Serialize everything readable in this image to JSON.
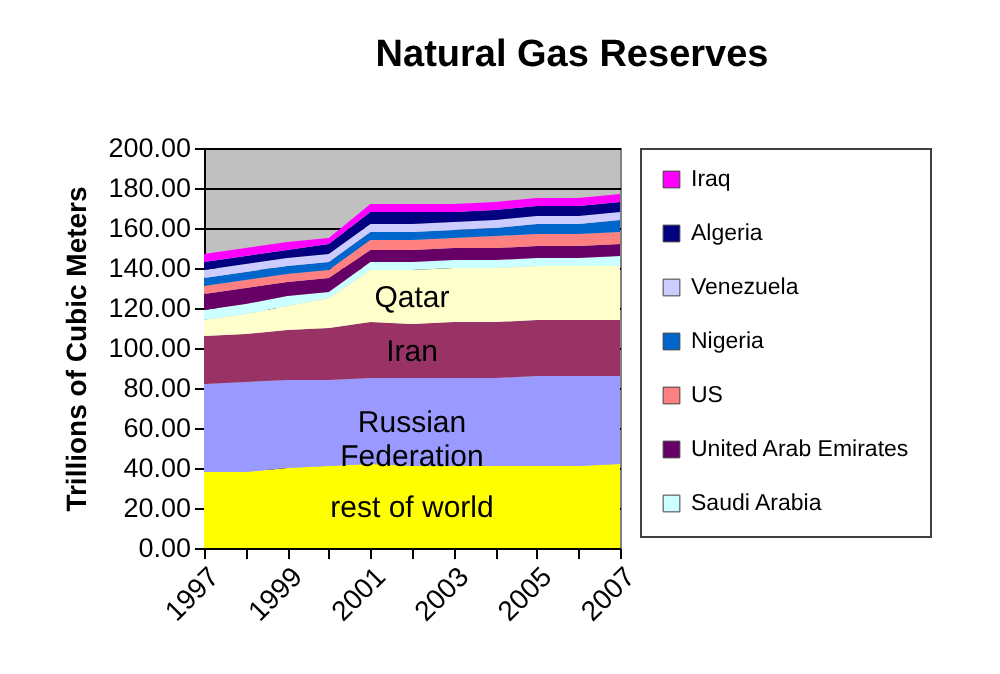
{
  "chart_data": {
    "type": "area",
    "stacked": true,
    "title": "Natural Gas Reserves",
    "ylabel": "Trillions of Cubic Meters",
    "categories": [
      "1997",
      null,
      "1999",
      null,
      "2001",
      null,
      "2003",
      null,
      "2005",
      null,
      "2007"
    ],
    "ylim": [
      0,
      200
    ],
    "yticks": [
      {
        "value": 0,
        "label": "0.00"
      },
      {
        "value": 20,
        "label": "20.00"
      },
      {
        "value": 40,
        "label": "40.00"
      },
      {
        "value": 60,
        "label": "60.00"
      },
      {
        "value": 80,
        "label": "80.00"
      },
      {
        "value": 100,
        "label": "100.00"
      },
      {
        "value": 120,
        "label": "120.00"
      },
      {
        "value": 140,
        "label": "140.00"
      },
      {
        "value": 160,
        "label": "160.00"
      },
      {
        "value": 180,
        "label": "180.00"
      },
      {
        "value": 200,
        "label": "200.00"
      }
    ],
    "grid": "y",
    "legend": "right",
    "series": [
      {
        "name": "rest of world",
        "color": "#ffff00",
        "values": [
          38,
          38,
          40,
          41,
          42,
          41,
          41,
          41,
          41,
          41,
          42
        ]
      },
      {
        "name": "Russian Federation",
        "color": "#9999ff",
        "values": [
          44,
          45,
          44,
          43,
          43,
          44,
          44,
          44,
          45,
          45,
          44
        ]
      },
      {
        "name": "Iran",
        "color": "#993366",
        "values": [
          24,
          24,
          25,
          26,
          28,
          27,
          28,
          28,
          28,
          28,
          28
        ]
      },
      {
        "name": "Qatar",
        "color": "#ffffcc",
        "values": [
          8,
          10,
          12,
          15,
          26,
          27,
          27,
          27,
          27,
          27,
          27
        ]
      },
      {
        "name": "Saudi Arabia",
        "color": "#ccffff",
        "values": [
          5,
          5,
          5,
          3,
          4,
          4,
          4,
          4,
          4,
          4,
          5
        ]
      },
      {
        "name": "United Arab Emirates",
        "color": "#660066",
        "values": [
          8,
          8,
          7,
          7,
          6,
          6,
          6,
          6,
          6,
          6,
          6
        ]
      },
      {
        "name": "US",
        "color": "#ff8080",
        "values": [
          4,
          4,
          4,
          4,
          5,
          5,
          5,
          6,
          6,
          6,
          6
        ]
      },
      {
        "name": "Nigeria",
        "color": "#0066cc",
        "values": [
          4,
          4,
          4,
          4,
          4,
          4,
          4,
          4,
          5,
          5,
          6
        ]
      },
      {
        "name": "Venezuela",
        "color": "#ccccff",
        "values": [
          4,
          4,
          4,
          4,
          4,
          4,
          4,
          4,
          4,
          4,
          4
        ]
      },
      {
        "name": "Algeria",
        "color": "#000080",
        "values": [
          4,
          4,
          4,
          5,
          6,
          6,
          5,
          5,
          5,
          5,
          5
        ]
      },
      {
        "name": "Iraq",
        "color": "#ff00ff",
        "values": [
          4,
          4,
          4,
          3,
          4,
          4,
          4,
          4,
          4,
          4,
          4
        ]
      }
    ]
  }
}
